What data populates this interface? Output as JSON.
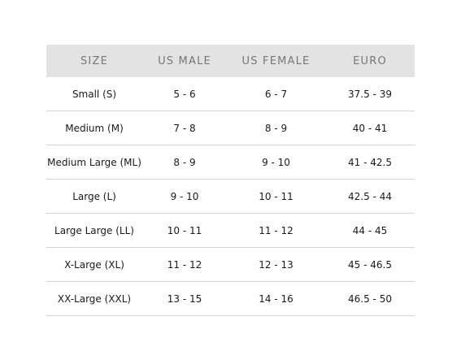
{
  "table": {
    "headers": [
      "SIZE",
      "US MALE",
      "US FEMALE",
      "EURO"
    ],
    "rows": [
      [
        "Small (S)",
        "5 - 6",
        "6 - 7",
        "37.5 - 39"
      ],
      [
        "Medium (M)",
        "7 - 8",
        "8 - 9",
        "40 - 41"
      ],
      [
        "Medium Large (ML)",
        "8 - 9",
        "9 - 10",
        "41 - 42.5"
      ],
      [
        "Large (L)",
        "9 - 10",
        "10 - 11",
        "42.5 - 44"
      ],
      [
        "Large Large (LL)",
        "10 - 11",
        "11 - 12",
        "44 - 45"
      ],
      [
        "X-Large (XL)",
        "11 - 12",
        "12 - 13",
        "45 - 46.5"
      ],
      [
        "XX-Large (XXL)",
        "13 - 15",
        "14 - 16",
        "46.5 - 50"
      ]
    ]
  },
  "colors": {
    "header_background": "#e3e3e3",
    "header_text": "#777777",
    "row_divider": "#d4d4d4",
    "body_text": "#1a1a1a"
  }
}
